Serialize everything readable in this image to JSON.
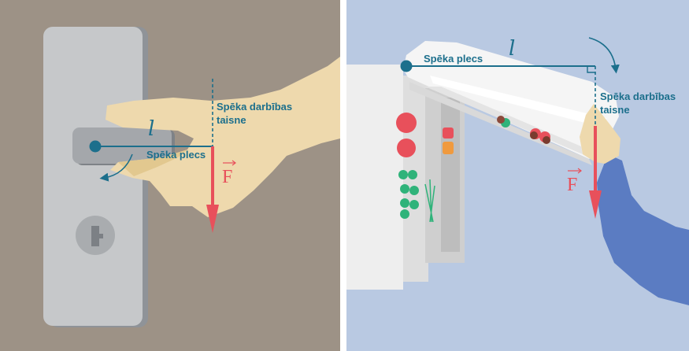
{
  "colors": {
    "wall_left": "#9d9286",
    "wall_right": "#b9c9e2",
    "accent": "#1c6f8c",
    "force": "#e8505b",
    "skin": "#eed9ad",
    "sleeve": "#5b7cc2",
    "plate": "#c6c8ca"
  },
  "panels": [
    {
      "lever_symbol": "l",
      "arm_label": "Spēka plecs",
      "line_label_line1": "Spēka darbības",
      "line_label_line2": "taisne",
      "force_symbol": "F"
    },
    {
      "lever_symbol": "l",
      "arm_label": "Spēka plecs",
      "line_label_line1": "Spēka darbības",
      "line_label_line2": "taisne",
      "force_symbol": "F"
    }
  ]
}
